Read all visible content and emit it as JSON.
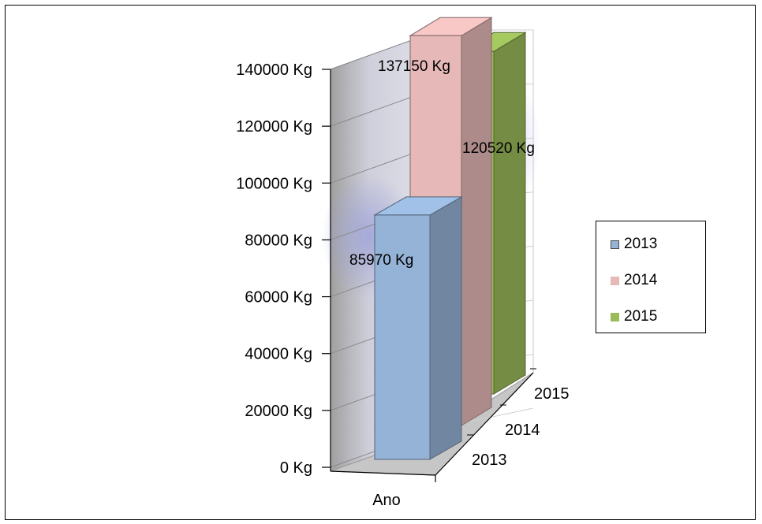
{
  "chart_data": {
    "type": "bar",
    "categories": [
      "Ano"
    ],
    "series": [
      {
        "name": "2013",
        "values": [
          85970
        ],
        "label": "85970 Kg",
        "color": "#95b3d7"
      },
      {
        "name": "2014",
        "values": [
          137150
        ],
        "label": "137150 Kg",
        "color": "#e6b9b8"
      },
      {
        "name": "2015",
        "values": [
          120520
        ],
        "label": "120520 Kg",
        "color": "#9bbb59"
      }
    ],
    "depth_labels": [
      "2013",
      "2014",
      "2015"
    ],
    "y_ticks": [
      "0 Kg",
      "20000 Kg",
      "40000 Kg",
      "60000 Kg",
      "80000 Kg",
      "100000 Kg",
      "120000 Kg",
      "140000 Kg"
    ],
    "ylim": [
      0,
      140000
    ],
    "xlabel": "",
    "ylabel": "",
    "title": "",
    "legend_position": "right",
    "grid": true,
    "three_d": true
  }
}
